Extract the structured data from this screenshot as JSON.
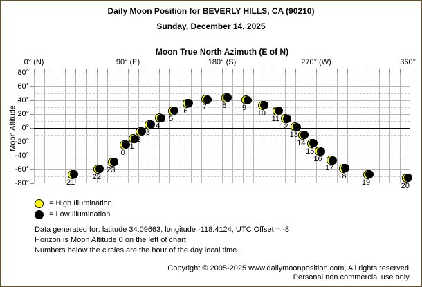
{
  "header": {
    "title": "Daily Moon Position for BEVERLY HILLS, CA (90210)",
    "date": "Sunday, December 14, 2025"
  },
  "chart_data": {
    "type": "scatter",
    "title": "Moon True North Azimuth (E of N)",
    "xlabel": "Moon True North Azimuth (E of N)",
    "ylabel": "Moon Altitude",
    "xlim": [
      0,
      360
    ],
    "ylim": [
      -80,
      80
    ],
    "x_grid_step_deg": 10,
    "y_grid_step_deg": 10,
    "y_major_step_deg": 20,
    "grid": true,
    "horizon_altitude": 0,
    "x_ticks": [
      {
        "value": 0,
        "label": "0° (N)"
      },
      {
        "value": 90,
        "label": "90° (E)"
      },
      {
        "value": 180,
        "label": "180° (S)"
      },
      {
        "value": 270,
        "label": "270° (W)"
      },
      {
        "value": 360,
        "label": "360°"
      }
    ],
    "y_ticks": [
      {
        "value": 80,
        "label": "80°"
      },
      {
        "value": 60,
        "label": "60°"
      },
      {
        "value": 40,
        "label": "40°"
      },
      {
        "value": 20,
        "label": "20°"
      },
      {
        "value": 0,
        "label": "0°"
      },
      {
        "value": -20,
        "label": "-20°"
      },
      {
        "value": -40,
        "label": "-40°"
      },
      {
        "value": -60,
        "label": "-60°"
      },
      {
        "value": -80,
        "label": "-80°"
      }
    ],
    "point_style": "moon-crescent",
    "points": [
      {
        "hour": 0,
        "azimuth": 86.5,
        "altitude": -24,
        "illumination": "low"
      },
      {
        "hour": 1,
        "azimuth": 95,
        "altitude": -15.5,
        "illumination": "low"
      },
      {
        "hour": 2,
        "azimuth": 101.5,
        "altitude": -5,
        "illumination": "low"
      },
      {
        "hour": 3,
        "azimuth": 110.5,
        "altitude": 5,
        "illumination": "low"
      },
      {
        "hour": 4,
        "azimuth": 120,
        "altitude": 14.5,
        "illumination": "low"
      },
      {
        "hour": 5,
        "azimuth": 132.5,
        "altitude": 25,
        "illumination": "low"
      },
      {
        "hour": 6,
        "azimuth": 146.5,
        "altitude": 36,
        "illumination": "low"
      },
      {
        "hour": 7,
        "azimuth": 164.5,
        "altitude": 41.5,
        "illumination": "low"
      },
      {
        "hour": 8,
        "azimuth": 183.5,
        "altitude": 44,
        "illumination": "low"
      },
      {
        "hour": 9,
        "azimuth": 202.5,
        "altitude": 40.5,
        "illumination": "low"
      },
      {
        "hour": 10,
        "azimuth": 219,
        "altitude": 33,
        "illumination": "low"
      },
      {
        "hour": 11,
        "azimuth": 232.5,
        "altitude": 25,
        "illumination": "low"
      },
      {
        "hour": 12,
        "azimuth": 240.5,
        "altitude": 13.5,
        "illumination": "low"
      },
      {
        "hour": 13,
        "azimuth": 250,
        "altitude": 1.5,
        "illumination": "low"
      },
      {
        "hour": 14,
        "azimuth": 257,
        "altitude": -10,
        "illumination": "low"
      },
      {
        "hour": 15,
        "azimuth": 265.5,
        "altitude": -22,
        "illumination": "low"
      },
      {
        "hour": 16,
        "azimuth": 273,
        "altitude": -33.5,
        "illumination": "low"
      },
      {
        "hour": 17,
        "azimuth": 284,
        "altitude": -46.5,
        "illumination": "low"
      },
      {
        "hour": 18,
        "azimuth": 296,
        "altitude": -58,
        "illumination": "low"
      },
      {
        "hour": 19,
        "azimuth": 319,
        "altitude": -67,
        "illumination": "low"
      },
      {
        "hour": 20,
        "azimuth": 356.5,
        "altitude": -72,
        "illumination": "low"
      },
      {
        "hour": 21,
        "azimuth": 36.5,
        "altitude": -67,
        "illumination": "low"
      },
      {
        "hour": 22,
        "azimuth": 61.5,
        "altitude": -59,
        "illumination": "low"
      },
      {
        "hour": 23,
        "azimuth": 75,
        "altitude": -49,
        "illumination": "low"
      }
    ]
  },
  "legend": [
    {
      "swatch": "high",
      "label": "= High Illumination"
    },
    {
      "swatch": "low",
      "label": "= Low Illumination"
    }
  ],
  "notes": [
    "Data generated for: latitude 34.09663, longitude -118.4124, UTC Offset = -8",
    "Horizon is Moon Altitude 0 on the left of chart",
    "Numbers below the circles are the hour of the day local time."
  ],
  "copyright": [
    "Copyright © 2005-2025 www.dailymoonposition.com, All rights reserved.",
    "Personal non commercial use only."
  ],
  "colors": {
    "moon_lit": "#ffff00",
    "moon_dark": "#000000",
    "frame_border": "#5f5233",
    "grid": "#b6b6b6",
    "background": "#ffffff"
  }
}
